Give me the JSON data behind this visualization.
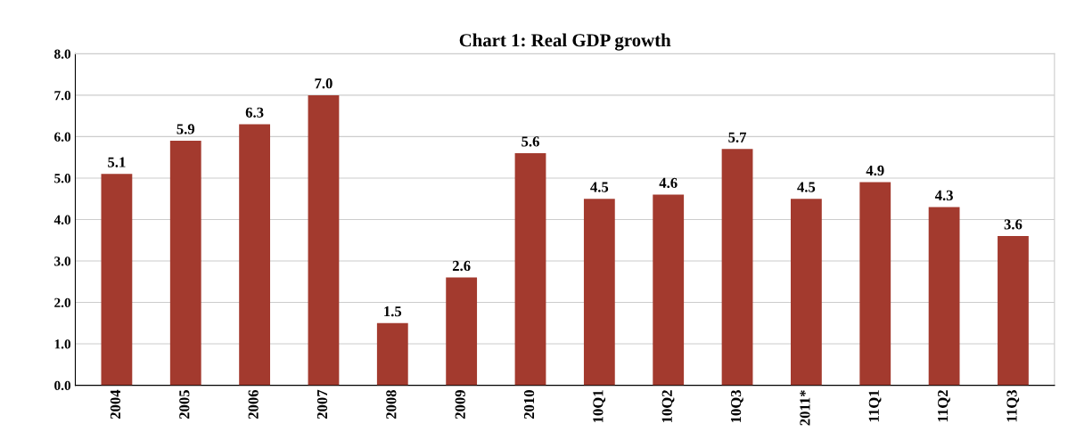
{
  "chart_data": {
    "type": "bar",
    "title": "Chart 1: Real GDP growth",
    "categories": [
      "2004",
      "2005",
      "2006",
      "2007",
      "2008",
      "2009",
      "2010",
      "10Q1",
      "10Q2",
      "10Q3",
      "2011*",
      "11Q1",
      "11Q2",
      "11Q3"
    ],
    "values": [
      5.1,
      5.9,
      6.3,
      7.0,
      1.5,
      2.6,
      5.6,
      4.5,
      4.6,
      5.7,
      4.5,
      4.9,
      4.3,
      3.6
    ],
    "value_labels": [
      "5.1",
      "5.9",
      "6.3",
      "7.0",
      "1.5",
      "2.6",
      "5.6",
      "4.5",
      "4.6",
      "5.7",
      "4.5",
      "4.9",
      "4.3",
      "3.6"
    ],
    "color": "#a33a2e",
    "ylim": [
      0,
      8
    ],
    "yticks": [
      {
        "value": 0,
        "label": "0.0"
      },
      {
        "value": 1,
        "label": "1.0"
      },
      {
        "value": 2,
        "label": "2.0"
      },
      {
        "value": 3,
        "label": "3.0"
      },
      {
        "value": 4,
        "label": "4.0"
      },
      {
        "value": 5,
        "label": "5.0"
      },
      {
        "value": 6,
        "label": "6.0"
      },
      {
        "value": 7,
        "label": "7.0"
      },
      {
        "value": 8,
        "label": "8.0"
      }
    ],
    "grid": "y"
  }
}
